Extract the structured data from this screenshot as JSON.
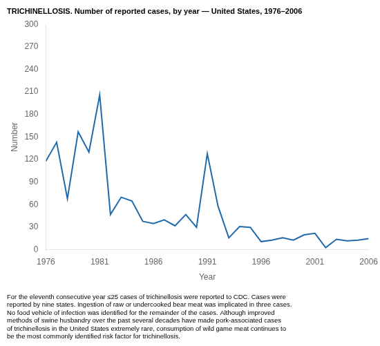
{
  "chart_data": {
    "type": "line",
    "title": "TRICHINELLOSIS. Number of reported cases, by year — United States, 1976–2006",
    "xlabel": "Year",
    "ylabel": "Number",
    "x": [
      1976,
      1977,
      1978,
      1979,
      1980,
      1981,
      1982,
      1983,
      1984,
      1985,
      1986,
      1987,
      1988,
      1989,
      1990,
      1991,
      1992,
      1993,
      1994,
      1995,
      1996,
      1997,
      1998,
      1999,
      2000,
      2001,
      2002,
      2003,
      2004,
      2005,
      2006
    ],
    "values": [
      118,
      143,
      68,
      157,
      130,
      206,
      47,
      70,
      65,
      38,
      35,
      40,
      32,
      47,
      30,
      128,
      58,
      16,
      31,
      30,
      11,
      13,
      16,
      13,
      20,
      22,
      3,
      14,
      12,
      13,
      15
    ],
    "color": "#1f6aad",
    "xlim": [
      1976,
      2006
    ],
    "xticks": [
      1976,
      1981,
      1986,
      1991,
      1996,
      2001,
      2006
    ],
    "ylim": [
      0,
      300
    ],
    "yticks": [
      0,
      30,
      60,
      90,
      120,
      150,
      180,
      210,
      240,
      270,
      300
    ],
    "grid": false,
    "caption": "For the eleventh consecutive year ≤25 cases of trichinellosis were reported to CDC. Cases were\nreported by nine states. Ingestion of raw or undercooked bear meat was implicated in three cases.\nNo food vehicle of infection was identified for the remainder of the cases. Although improved\nmethods of swine husbandry over the past several decades have made pork-associated cases\nof trichinellosis in the United States extremely rare, consumption of wild game meat continues to\nbe the most commonly identified risk factor for trichinellosis."
  }
}
